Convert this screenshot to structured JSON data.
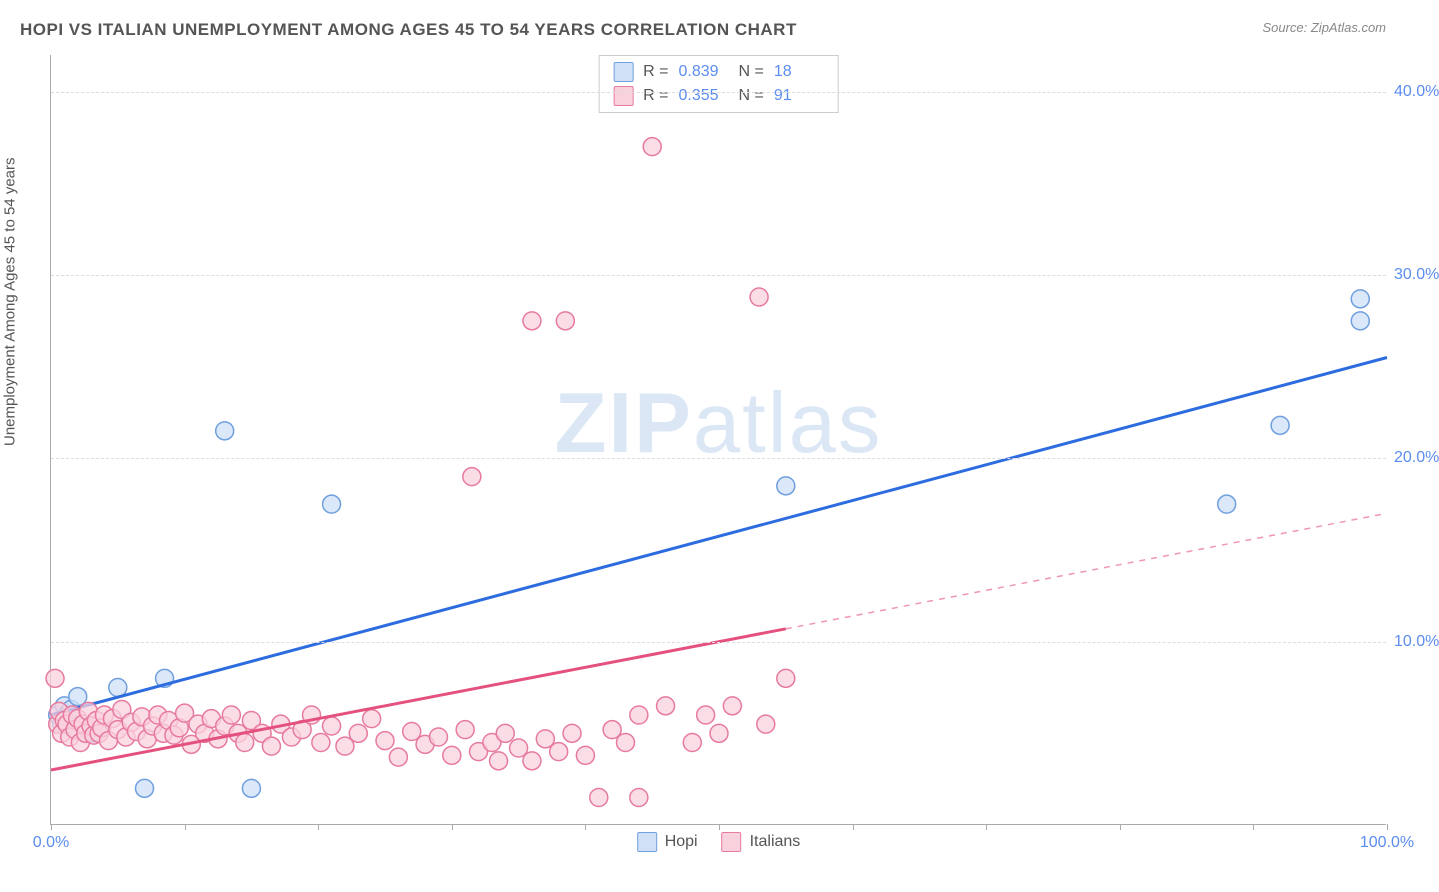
{
  "title": "HOPI VS ITALIAN UNEMPLOYMENT AMONG AGES 45 TO 54 YEARS CORRELATION CHART",
  "source": "Source: ZipAtlas.com",
  "watermark_a": "ZIP",
  "watermark_b": "atlas",
  "y_axis_label": "Unemployment Among Ages 45 to 54 years",
  "chart": {
    "type": "scatter",
    "xlim": [
      0,
      100
    ],
    "ylim": [
      0,
      42
    ],
    "x_ticks": [
      0,
      10,
      20,
      30,
      40,
      50,
      60,
      70,
      80,
      90,
      100
    ],
    "x_tick_labels": {
      "0": "0.0%",
      "100": "100.0%"
    },
    "y_ticks": [
      10,
      20,
      30,
      40
    ],
    "y_tick_labels": {
      "10": "10.0%",
      "20": "20.0%",
      "30": "30.0%",
      "40": "40.0%"
    },
    "background_color": "#ffffff",
    "grid_color": "#dddddd",
    "axis_color": "#aaaaaa",
    "tick_label_color": "#5b8def",
    "series": [
      {
        "name": "Hopi",
        "marker_fill": "#cfe0f7",
        "marker_stroke": "#6f9fde",
        "marker_radius": 9,
        "line_color": "#2d6cdf",
        "line_width": 3,
        "r": "0.839",
        "n": "18",
        "regression": {
          "x1": 0,
          "y1": 6.0,
          "x2": 100,
          "y2": 25.5,
          "dashed_from_x": null
        },
        "points": [
          [
            0.5,
            6.0
          ],
          [
            0.8,
            5.5
          ],
          [
            1.0,
            6.5
          ],
          [
            1.2,
            6.0
          ],
          [
            1.5,
            6.3
          ],
          [
            2.0,
            7.0
          ],
          [
            3.0,
            5.0
          ],
          [
            5.0,
            7.5
          ],
          [
            7.0,
            2.0
          ],
          [
            8.5,
            8.0
          ],
          [
            13.0,
            21.5
          ],
          [
            15.0,
            2.0
          ],
          [
            21.0,
            17.5
          ],
          [
            55.0,
            18.5
          ],
          [
            88.0,
            17.5
          ],
          [
            92.0,
            21.8
          ],
          [
            98.0,
            27.5
          ],
          [
            98.0,
            28.7
          ]
        ]
      },
      {
        "name": "Italians",
        "marker_fill": "#f9d1dd",
        "marker_stroke": "#e77aa0",
        "marker_radius": 9,
        "line_color": "#e5517f",
        "line_width": 3,
        "r": "0.355",
        "n": "91",
        "regression": {
          "x1": 0,
          "y1": 3.0,
          "x2": 100,
          "y2": 17.0,
          "dashed_from_x": 55
        },
        "points": [
          [
            0.3,
            8.0
          ],
          [
            0.5,
            5.5
          ],
          [
            0.6,
            6.2
          ],
          [
            0.8,
            5.0
          ],
          [
            1.0,
            5.7
          ],
          [
            1.2,
            5.5
          ],
          [
            1.4,
            4.8
          ],
          [
            1.6,
            6.0
          ],
          [
            1.8,
            5.2
          ],
          [
            2.0,
            5.8
          ],
          [
            2.2,
            4.5
          ],
          [
            2.4,
            5.5
          ],
          [
            2.6,
            5.0
          ],
          [
            2.8,
            6.2
          ],
          [
            3.0,
            5.4
          ],
          [
            3.2,
            4.9
          ],
          [
            3.4,
            5.7
          ],
          [
            3.6,
            5.0
          ],
          [
            3.8,
            5.3
          ],
          [
            4.0,
            6.0
          ],
          [
            4.3,
            4.6
          ],
          [
            4.6,
            5.8
          ],
          [
            5.0,
            5.2
          ],
          [
            5.3,
            6.3
          ],
          [
            5.6,
            4.8
          ],
          [
            6.0,
            5.6
          ],
          [
            6.4,
            5.1
          ],
          [
            6.8,
            5.9
          ],
          [
            7.2,
            4.7
          ],
          [
            7.6,
            5.4
          ],
          [
            8.0,
            6.0
          ],
          [
            8.4,
            5.0
          ],
          [
            8.8,
            5.7
          ],
          [
            9.2,
            4.9
          ],
          [
            9.6,
            5.3
          ],
          [
            10.0,
            6.1
          ],
          [
            10.5,
            4.4
          ],
          [
            11.0,
            5.5
          ],
          [
            11.5,
            5.0
          ],
          [
            12.0,
            5.8
          ],
          [
            12.5,
            4.7
          ],
          [
            13.0,
            5.4
          ],
          [
            13.5,
            6.0
          ],
          [
            14.0,
            5.0
          ],
          [
            14.5,
            4.5
          ],
          [
            15.0,
            5.7
          ],
          [
            15.8,
            5.0
          ],
          [
            16.5,
            4.3
          ],
          [
            17.2,
            5.5
          ],
          [
            18.0,
            4.8
          ],
          [
            18.8,
            5.2
          ],
          [
            19.5,
            6.0
          ],
          [
            20.2,
            4.5
          ],
          [
            21.0,
            5.4
          ],
          [
            22.0,
            4.3
          ],
          [
            23.0,
            5.0
          ],
          [
            24.0,
            5.8
          ],
          [
            25.0,
            4.6
          ],
          [
            26.0,
            3.7
          ],
          [
            27.0,
            5.1
          ],
          [
            28.0,
            4.4
          ],
          [
            29.0,
            4.8
          ],
          [
            30.0,
            3.8
          ],
          [
            31.0,
            5.2
          ],
          [
            31.5,
            19.0
          ],
          [
            32.0,
            4.0
          ],
          [
            33.0,
            4.5
          ],
          [
            33.5,
            3.5
          ],
          [
            34.0,
            5.0
          ],
          [
            35.0,
            4.2
          ],
          [
            36.0,
            3.5
          ],
          [
            36.0,
            27.5
          ],
          [
            37.0,
            4.7
          ],
          [
            38.0,
            4.0
          ],
          [
            38.5,
            27.5
          ],
          [
            39.0,
            5.0
          ],
          [
            40.0,
            3.8
          ],
          [
            41.0,
            1.5
          ],
          [
            42.0,
            5.2
          ],
          [
            43.0,
            4.5
          ],
          [
            44.0,
            6.0
          ],
          [
            44.0,
            1.5
          ],
          [
            45.0,
            37.0
          ],
          [
            46.0,
            6.5
          ],
          [
            48.0,
            4.5
          ],
          [
            49.0,
            6.0
          ],
          [
            50.0,
            5.0
          ],
          [
            51.0,
            6.5
          ],
          [
            53.0,
            28.8
          ],
          [
            53.5,
            5.5
          ],
          [
            55.0,
            8.0
          ]
        ]
      }
    ]
  },
  "legend_bottom": [
    {
      "label": "Hopi",
      "fill": "#cfe0f7",
      "stroke": "#6f9fde"
    },
    {
      "label": "Italians",
      "fill": "#f9d1dd",
      "stroke": "#e77aa0"
    }
  ]
}
